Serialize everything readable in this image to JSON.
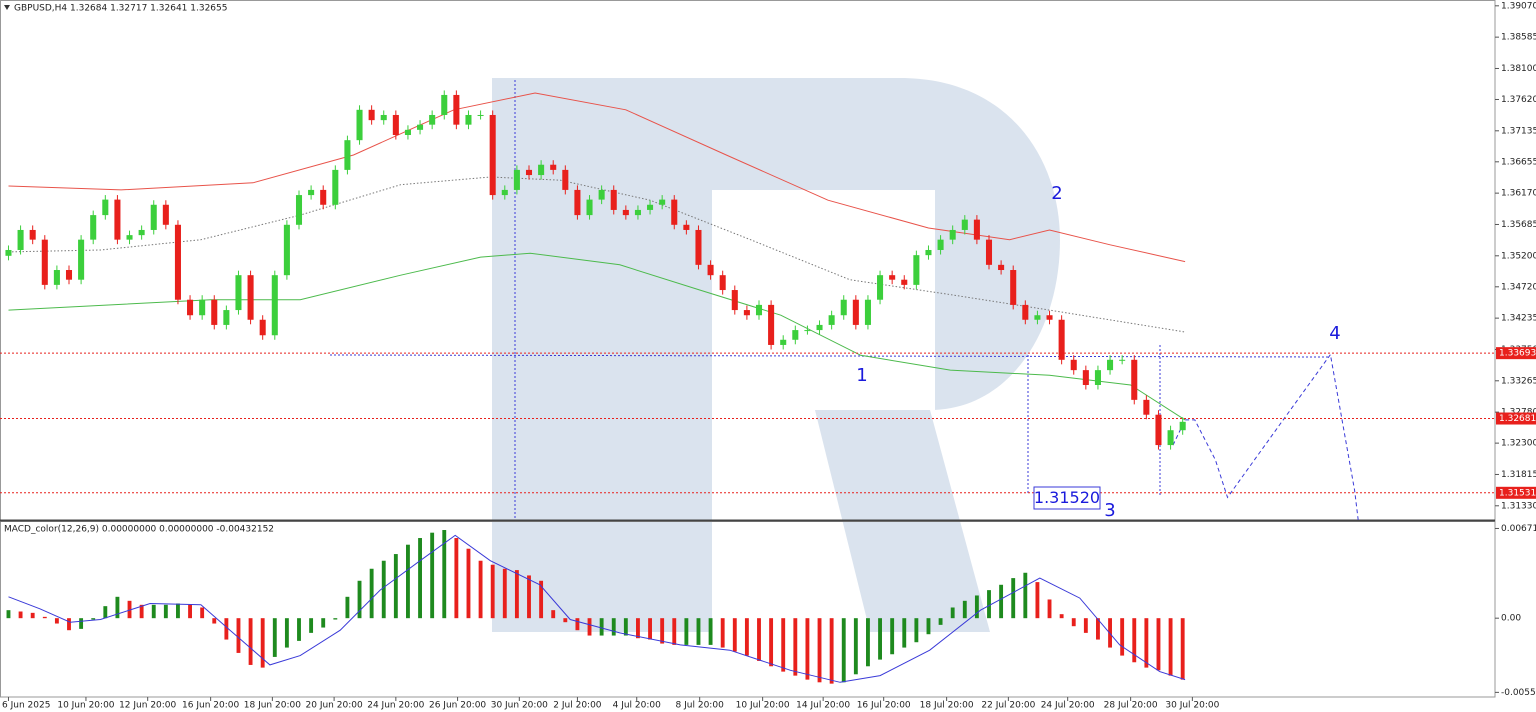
{
  "chart_data": [
    {
      "type": "candlestick",
      "title": "GBPUSD,H4  1.32684 1.32717 1.32641 1.32655",
      "bull_color": "#3ccf3c",
      "bear_color": "#e8201c",
      "xlim": [
        -0.7,
        122.8
      ],
      "ylim": [
        1.3111,
        1.3916
      ],
      "yticks": [
        {
          "value": 1.3907,
          "label": "1.39070"
        },
        1.38585,
        {
          "value": 1.381,
          "label": "1.38100"
        },
        {
          "value": 1.3762,
          "label": "1.37620"
        },
        1.37135,
        1.36655,
        {
          "value": 1.3617,
          "label": "1.36170"
        },
        1.35685,
        {
          "value": 1.352,
          "label": "1.35200"
        },
        {
          "value": 1.3472,
          "label": "1.34720"
        },
        1.34235,
        {
          "value": 1.3375,
          "label": "1.33750"
        },
        1.33265,
        {
          "value": 1.3278,
          "label": "1.32780"
        },
        {
          "value": 1.323,
          "label": "1.32300"
        },
        1.31815,
        {
          "value": 1.3133,
          "label": "1.31330"
        }
      ],
      "open": [
        1.352,
        1.3529,
        1.356,
        1.3545,
        1.3475,
        1.3498,
        1.3483,
        1.3545,
        1.3583,
        1.3607,
        1.3545,
        1.3552,
        1.356,
        1.3599,
        1.3568,
        1.3452,
        1.3428,
        1.3452,
        1.3413,
        1.3436,
        1.349,
        1.3421,
        1.3397,
        1.349,
        1.3568,
        1.3614,
        1.3622,
        1.3599,
        1.3653,
        1.3699,
        1.3746,
        1.373,
        1.3738,
        1.3707,
        1.3715,
        1.3723,
        1.3738,
        1.3769,
        1.3723,
        1.3738,
        1.3738,
        1.3614,
        1.3622,
        1.3653,
        1.3645,
        1.3661,
        1.3653,
        1.3622,
        1.3583,
        1.3607,
        1.3622,
        1.3591,
        1.3583,
        1.3591,
        1.3599,
        1.3607,
        1.3568,
        1.356,
        1.3506,
        1.349,
        1.3467,
        1.3436,
        1.3428,
        1.3444,
        1.3382,
        1.339,
        1.3405,
        1.3405,
        1.3413,
        1.3428,
        1.3452,
        1.3413,
        1.3452,
        1.349,
        1.3483,
        1.3475,
        1.3521,
        1.3529,
        1.3545,
        1.356,
        1.3576,
        1.3545,
        1.3506,
        1.3498,
        1.3444,
        1.3421,
        1.3428,
        1.3421,
        1.3359,
        1.3343,
        1.332,
        1.3343,
        1.3359,
        1.3359,
        1.3297,
        1.3274,
        1.3227,
        1.325
      ],
      "high": [
        1.3536,
        1.3567,
        1.3567,
        1.3552,
        1.3505,
        1.3505,
        1.3552,
        1.359,
        1.3614,
        1.3614,
        1.3559,
        1.3567,
        1.3606,
        1.3606,
        1.3575,
        1.3459,
        1.3459,
        1.3459,
        1.3443,
        1.3497,
        1.3497,
        1.3428,
        1.3497,
        1.3575,
        1.3621,
        1.3629,
        1.3629,
        1.366,
        1.3706,
        1.3753,
        1.3753,
        1.3745,
        1.3745,
        1.3722,
        1.373,
        1.3745,
        1.3776,
        1.3776,
        1.3745,
        1.3745,
        1.3745,
        1.3629,
        1.366,
        1.366,
        1.3668,
        1.3668,
        1.366,
        1.3629,
        1.3614,
        1.3629,
        1.3629,
        1.3598,
        1.3598,
        1.3606,
        1.3614,
        1.3614,
        1.3575,
        1.3567,
        1.3513,
        1.3497,
        1.3474,
        1.3443,
        1.3451,
        1.3451,
        1.3397,
        1.3412,
        1.3412,
        1.342,
        1.3435,
        1.3459,
        1.3459,
        1.3459,
        1.3497,
        1.3497,
        1.349,
        1.3528,
        1.3536,
        1.3552,
        1.3567,
        1.3583,
        1.3583,
        1.3552,
        1.3513,
        1.3505,
        1.3451,
        1.3435,
        1.3435,
        1.3428,
        1.3366,
        1.335,
        1.335,
        1.3366,
        1.3366,
        1.3366,
        1.3304,
        1.3281,
        1.3257,
        1.327
      ],
      "low": [
        1.3513,
        1.3522,
        1.3538,
        1.3468,
        1.3468,
        1.3476,
        1.3476,
        1.3538,
        1.3576,
        1.3538,
        1.3538,
        1.3545,
        1.3553,
        1.3561,
        1.3445,
        1.3421,
        1.3421,
        1.3406,
        1.3406,
        1.3429,
        1.3414,
        1.339,
        1.339,
        1.3483,
        1.3561,
        1.3607,
        1.3592,
        1.3592,
        1.3646,
        1.3692,
        1.3723,
        1.3723,
        1.37,
        1.37,
        1.3708,
        1.3716,
        1.3731,
        1.3716,
        1.3716,
        1.3731,
        1.3607,
        1.3607,
        1.3615,
        1.3638,
        1.3638,
        1.3646,
        1.3615,
        1.3576,
        1.3576,
        1.36,
        1.3584,
        1.3576,
        1.3576,
        1.3584,
        1.3592,
        1.3561,
        1.3553,
        1.3499,
        1.3483,
        1.346,
        1.3429,
        1.3421,
        1.3421,
        1.3375,
        1.3375,
        1.3383,
        1.3398,
        1.3398,
        1.3406,
        1.3421,
        1.3406,
        1.3406,
        1.3445,
        1.3476,
        1.3468,
        1.3468,
        1.3514,
        1.3522,
        1.3538,
        1.3553,
        1.3538,
        1.3499,
        1.3491,
        1.3437,
        1.3414,
        1.3414,
        1.3414,
        1.3352,
        1.3336,
        1.3313,
        1.3313,
        1.3336,
        1.3352,
        1.329,
        1.3267,
        1.322,
        1.322,
        1.3243
      ],
      "close": [
        1.3529,
        1.356,
        1.3545,
        1.3475,
        1.3498,
        1.3483,
        1.3545,
        1.3583,
        1.3607,
        1.3545,
        1.3552,
        1.356,
        1.3599,
        1.3568,
        1.3452,
        1.3428,
        1.3452,
        1.3413,
        1.3436,
        1.349,
        1.3421,
        1.3397,
        1.349,
        1.3568,
        1.3614,
        1.3622,
        1.3599,
        1.3653,
        1.3699,
        1.3746,
        1.373,
        1.3738,
        1.3707,
        1.3715,
        1.3723,
        1.3738,
        1.3769,
        1.3723,
        1.3738,
        1.3738,
        1.3614,
        1.3622,
        1.3653,
        1.3645,
        1.3661,
        1.3653,
        1.3622,
        1.3583,
        1.3607,
        1.3622,
        1.3591,
        1.3583,
        1.3591,
        1.3599,
        1.3607,
        1.3568,
        1.356,
        1.3506,
        1.349,
        1.3467,
        1.3436,
        1.3428,
        1.3444,
        1.3382,
        1.339,
        1.3405,
        1.3405,
        1.3413,
        1.3428,
        1.3452,
        1.3413,
        1.3452,
        1.349,
        1.3483,
        1.3475,
        1.3521,
        1.3529,
        1.3545,
        1.356,
        1.3576,
        1.3545,
        1.3506,
        1.3498,
        1.3444,
        1.3421,
        1.3428,
        1.3421,
        1.3359,
        1.3343,
        1.332,
        1.3343,
        1.3359,
        1.3359,
        1.3297,
        1.3274,
        1.3227,
        1.325,
        1.3263
      ],
      "lines": [
        {
          "color": "#e8534a",
          "style": "solid",
          "x": [
            0,
            9.3,
            20.2,
            28.5,
            36.8,
            43.5,
            51,
            59.3,
            67.7,
            76,
            82.7,
            86,
            91,
            97.2
          ],
          "values": [
            1.3628,
            1.3622,
            1.3633,
            1.3676,
            1.3746,
            1.3772,
            1.3746,
            1.3676,
            1.3606,
            1.3563,
            1.3545,
            1.356,
            1.3537,
            1.3511
          ]
        },
        {
          "color": "#777777",
          "style": "dotted",
          "x": [
            0,
            7.6,
            15.9,
            24.1,
            32.4,
            39.8,
            45.6,
            53.0,
            61.3,
            69.5,
            77.8,
            86.0,
            97.2
          ],
          "values": [
            1.3526,
            1.3529,
            1.3545,
            1.3583,
            1.363,
            1.3642,
            1.3637,
            1.3606,
            1.3545,
            1.3483,
            1.346,
            1.3436,
            1.3402
          ]
        },
        {
          "color": "#4cba4c",
          "style": "solid",
          "x": [
            0,
            16.7,
            24.1,
            32.4,
            39.0,
            43.1,
            50.5,
            57.1,
            63.8,
            70.4,
            77.8,
            86.0,
            92.7,
            97.2
          ],
          "values": [
            1.3436,
            1.3452,
            1.3452,
            1.349,
            1.3518,
            1.3524,
            1.3506,
            1.3467,
            1.3428,
            1.3366,
            1.3343,
            1.3335,
            1.332,
            1.3266
          ]
        },
        {
          "color": "#3a3ad8",
          "style": "dashed",
          "x": [
            96.2,
            97.2,
            98,
            99.7,
            100.7,
            105,
            109.2,
            111.2,
            111.5
          ],
          "values": [
            1.3227,
            1.3266,
            1.3266,
            1.3204,
            1.3146,
            1.3258,
            1.3367,
            1.3157,
            1.3111
          ]
        }
      ],
      "levels": [
        1.33693,
        1.32681,
        1.31531
      ],
      "level_color": "#e8201c",
      "annotations": [
        "1",
        "2",
        "3",
        "4",
        "1.31520"
      ]
    },
    {
      "type": "macd",
      "title": "MACD_color(12,26,9) 0.00000000 0.00000000 -0.00432152",
      "up_color": "#1e8a1e",
      "down_color": "#e8201c",
      "xlim": [
        -0.7,
        122.8
      ],
      "ylim": [
        -0.0059,
        0.0072
      ],
      "yticks": [
        0.0067166,
        {
          "value": 0,
          "label": "0.00"
        },
        -0.0055528
      ],
      "xticks": [
        {
          "value": 0,
          "label": "6 Jun 2025"
        },
        {
          "value": 6.4,
          "label": "10 Jun 20:00"
        },
        {
          "value": 11.5,
          "label": "12 Jun 20:00"
        },
        {
          "value": 16.7,
          "label": "16 Jun 20:00"
        },
        {
          "value": 21.8,
          "label": "18 Jun 20:00"
        },
        {
          "value": 26.9,
          "label": "20 Jun 20:00"
        },
        {
          "value": 32,
          "label": "24 Jun 20:00"
        },
        {
          "value": 37.1,
          "label": "26 Jun 20:00"
        },
        {
          "value": 42.2,
          "label": "30 Jun 20:00"
        },
        {
          "value": 47,
          "label": "2 Jul 20:00"
        },
        {
          "value": 51.9,
          "label": "4 Jul 20:00"
        },
        {
          "value": 57.1,
          "label": "8 Jul 20:00"
        },
        {
          "value": 62.3,
          "label": "10 Jul 20:00"
        },
        {
          "value": 67.3,
          "label": "14 Jul 20:00"
        },
        {
          "value": 72.3,
          "label": "16 Jul 20:00"
        },
        {
          "value": 77.5,
          "label": "18 Jul 20:00"
        },
        {
          "value": 82.6,
          "label": "22 Jul 20:00"
        },
        {
          "value": 87.5,
          "label": "24 Jul 20:00"
        },
        {
          "value": 92.7,
          "label": "28 Jul 20:00"
        },
        {
          "value": 97.8,
          "label": "30 Jul 20:00"
        }
      ],
      "values": [
        0.0006,
        0.0005,
        0.0004,
        0.0001,
        -0.0004,
        -0.0009,
        -0.0008,
        -0.0001,
        0.0009,
        0.0016,
        0.0013,
        0.001,
        0.001,
        0.001,
        0.0011,
        0.001,
        0.0008,
        -0.0004,
        -0.0016,
        -0.0026,
        -0.0035,
        -0.0037,
        -0.0029,
        -0.0022,
        -0.0017,
        -0.0011,
        -0.0007,
        -0.0001,
        0.0016,
        0.0028,
        0.0037,
        0.0043,
        0.0048,
        0.0055,
        0.006,
        0.0064,
        0.0066,
        0.006,
        0.0052,
        0.0043,
        0.004,
        0.0037,
        0.0036,
        0.0032,
        0.0028,
        0.0006,
        -0.0003,
        -0.0009,
        -0.0013,
        -0.0013,
        -0.0013,
        -0.0013,
        -0.0015,
        -0.0016,
        -0.0019,
        -0.002,
        -0.002,
        -0.002,
        -0.002,
        -0.0022,
        -0.0025,
        -0.0028,
        -0.0032,
        -0.0036,
        -0.004,
        -0.0043,
        -0.0046,
        -0.0048,
        -0.0049,
        -0.0048,
        -0.0042,
        -0.0036,
        -0.0031,
        -0.0027,
        -0.0022,
        -0.0018,
        -0.0012,
        -0.0005,
        0.0008,
        0.0013,
        0.0017,
        0.0021,
        0.0025,
        0.003,
        0.0034,
        0.0027,
        0.0014,
        0.0003,
        -0.0006,
        -0.0011,
        -0.0016,
        -0.0022,
        -0.0028,
        -0.0033,
        -0.0037,
        -0.0039,
        -0.0043,
        -0.0046
      ],
      "signal": {
        "color": "#3a3ad8",
        "x": [
          0,
          2.6,
          5.1,
          7.6,
          11.7,
          15.9,
          18.3,
          21.6,
          24.1,
          27.4,
          30.7,
          34,
          36.9,
          39.8,
          43.9,
          46.4,
          50.5,
          55.5,
          59.6,
          64.6,
          68.7,
          72,
          76.1,
          80.3,
          85.2,
          88.5,
          91.8,
          95.1,
          97.2
        ],
        "values": [
          0.0016,
          0.0007,
          -0.0003,
          -0.0001,
          0.0011,
          0.001,
          -0.0009,
          -0.0035,
          -0.0028,
          -0.0009,
          0.0021,
          0.0043,
          0.0062,
          0.0043,
          0.0025,
          -0.0001,
          -0.0011,
          -0.002,
          -0.0024,
          -0.0039,
          -0.0048,
          -0.0043,
          -0.0024,
          0.0006,
          0.003,
          0.0015,
          -0.002,
          -0.004,
          -0.0046
        ]
      }
    }
  ]
}
